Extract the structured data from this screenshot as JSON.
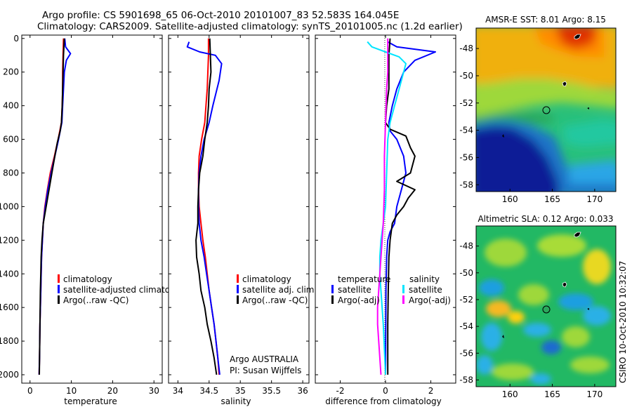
{
  "header": {
    "title_line1": "Argo profile: CS 5901698_65 06-Oct-2010 20101007_83 52.583S 164.045E",
    "title_line2": "Climatology: CARS2009. Satellite-adjusted climatology: synTS_20101005.nc (1.2d earlier)"
  },
  "credit": "CSIRO 10-Oct-2010 10:32:07",
  "colors": {
    "climatology": "#ff0000",
    "satellite": "#0000ff",
    "argo": "#000000",
    "cyan": "#00e5ff",
    "magenta": "#ff00ff"
  },
  "chart_data": [
    {
      "id": "temperature",
      "type": "line",
      "xlabel": "temperature",
      "ylim": [
        2050,
        -20
      ],
      "yticks": [
        0,
        200,
        400,
        600,
        800,
        1000,
        1200,
        1400,
        1600,
        1800,
        2000
      ],
      "xlim": [
        -2,
        32
      ],
      "xticks": [
        0,
        10,
        20,
        30
      ],
      "legend": [
        {
          "label": "climatology",
          "color": "#ff0000"
        },
        {
          "label": "satellite-adjusted climatology",
          "color": "#0000ff"
        },
        {
          "label": "Argo(..raw -QC)",
          "color": "#000000"
        }
      ],
      "series": [
        {
          "name": "climatology",
          "color": "#ff0000",
          "points": [
            [
              8.1,
              0
            ],
            [
              8.0,
              100
            ],
            [
              7.9,
              200
            ],
            [
              7.9,
              300
            ],
            [
              7.8,
              400
            ],
            [
              7.6,
              500
            ],
            [
              6.8,
              600
            ],
            [
              5.9,
              700
            ],
            [
              4.9,
              800
            ],
            [
              4.2,
              900
            ],
            [
              3.6,
              1000
            ],
            [
              3.2,
              1100
            ],
            [
              3.0,
              1200
            ],
            [
              2.8,
              1300
            ],
            [
              2.7,
              1400
            ],
            [
              2.6,
              1500
            ],
            [
              2.5,
              1600
            ],
            [
              2.4,
              1700
            ],
            [
              2.35,
              1800
            ],
            [
              2.3,
              1900
            ],
            [
              2.2,
              2000
            ]
          ]
        },
        {
          "name": "satellite-adjusted climatology",
          "color": "#0000ff",
          "points": [
            [
              8.4,
              0
            ],
            [
              8.6,
              50
            ],
            [
              9.8,
              90
            ],
            [
              8.8,
              130
            ],
            [
              8.3,
              200
            ],
            [
              8.1,
              300
            ],
            [
              7.9,
              400
            ],
            [
              7.7,
              500
            ],
            [
              6.9,
              600
            ],
            [
              6.0,
              700
            ],
            [
              5.1,
              800
            ],
            [
              4.3,
              900
            ],
            [
              3.7,
              1000
            ],
            [
              3.2,
              1100
            ],
            [
              3.0,
              1200
            ],
            [
              2.8,
              1300
            ],
            [
              2.7,
              1400
            ],
            [
              2.6,
              1500
            ],
            [
              2.5,
              1600
            ],
            [
              2.4,
              1700
            ],
            [
              2.35,
              1800
            ],
            [
              2.3,
              1900
            ],
            [
              2.2,
              2000
            ]
          ]
        },
        {
          "name": "Argo(..raw -QC)",
          "color": "#000000",
          "points": [
            [
              8.3,
              0
            ],
            [
              8.2,
              50
            ],
            [
              8.1,
              100
            ],
            [
              8.0,
              200
            ],
            [
              7.9,
              300
            ],
            [
              7.8,
              400
            ],
            [
              7.6,
              500
            ],
            [
              7.3,
              550
            ],
            [
              6.6,
              620
            ],
            [
              6.0,
              700
            ],
            [
              5.3,
              800
            ],
            [
              4.6,
              900
            ],
            [
              3.9,
              1000
            ],
            [
              3.2,
              1100
            ],
            [
              2.9,
              1200
            ],
            [
              2.7,
              1300
            ],
            [
              2.6,
              1400
            ],
            [
              2.5,
              1500
            ],
            [
              2.45,
              1600
            ],
            [
              2.4,
              1700
            ],
            [
              2.35,
              1800
            ],
            [
              2.3,
              1900
            ],
            [
              2.25,
              2000
            ]
          ]
        }
      ]
    },
    {
      "id": "salinity",
      "type": "line",
      "xlabel": "salinity",
      "ylim": [
        2050,
        -20
      ],
      "xlim": [
        33.85,
        36.1
      ],
      "xticks": [
        34,
        34.5,
        35,
        35.5,
        36
      ],
      "legend": [
        {
          "label": "climatology",
          "color": "#ff0000"
        },
        {
          "label": "satellite adj. clim.",
          "color": "#0000ff"
        },
        {
          "label": "Argo(..raw -QC)",
          "color": "#000000"
        }
      ],
      "annotation": [
        "Argo AUSTRALIA",
        "PI: Susan Wijffels"
      ],
      "series": [
        {
          "name": "climatology",
          "color": "#ff0000",
          "points": [
            [
              34.49,
              0
            ],
            [
              34.49,
              100
            ],
            [
              34.48,
              200
            ],
            [
              34.47,
              300
            ],
            [
              34.45,
              400
            ],
            [
              34.43,
              500
            ],
            [
              34.38,
              600
            ],
            [
              34.34,
              700
            ],
            [
              34.33,
              800
            ],
            [
              34.33,
              900
            ],
            [
              34.34,
              1000
            ],
            [
              34.37,
              1100
            ],
            [
              34.4,
              1200
            ],
            [
              34.44,
              1300
            ],
            [
              34.47,
              1400
            ],
            [
              34.5,
              1500
            ],
            [
              34.54,
              1600
            ],
            [
              34.58,
              1700
            ],
            [
              34.61,
              1800
            ],
            [
              34.64,
              1900
            ],
            [
              34.66,
              2000
            ]
          ]
        },
        {
          "name": "satellite adj. clim.",
          "color": "#0000ff",
          "points": [
            [
              34.18,
              20
            ],
            [
              34.15,
              50
            ],
            [
              34.35,
              80
            ],
            [
              34.6,
              100
            ],
            [
              34.7,
              150
            ],
            [
              34.66,
              250
            ],
            [
              34.56,
              400
            ],
            [
              34.5,
              500
            ],
            [
              34.42,
              600
            ],
            [
              34.37,
              700
            ],
            [
              34.34,
              800
            ],
            [
              34.33,
              900
            ],
            [
              34.33,
              1000
            ],
            [
              34.34,
              1100
            ],
            [
              34.37,
              1200
            ],
            [
              34.42,
              1300
            ],
            [
              34.46,
              1400
            ],
            [
              34.5,
              1500
            ],
            [
              34.54,
              1600
            ],
            [
              34.58,
              1700
            ],
            [
              34.61,
              1800
            ],
            [
              34.64,
              1900
            ],
            [
              34.67,
              2000
            ]
          ]
        },
        {
          "name": "Argo(..raw -QC)",
          "color": "#000000",
          "points": [
            [
              34.51,
              0
            ],
            [
              34.52,
              100
            ],
            [
              34.53,
              200
            ],
            [
              34.5,
              300
            ],
            [
              34.49,
              400
            ],
            [
              34.47,
              500
            ],
            [
              34.43,
              600
            ],
            [
              34.4,
              700
            ],
            [
              34.35,
              800
            ],
            [
              34.33,
              900
            ],
            [
              34.32,
              1000
            ],
            [
              34.32,
              1100
            ],
            [
              34.29,
              1200
            ],
            [
              34.3,
              1300
            ],
            [
              34.34,
              1400
            ],
            [
              34.37,
              1500
            ],
            [
              34.43,
              1600
            ],
            [
              34.47,
              1700
            ],
            [
              34.53,
              1800
            ],
            [
              34.58,
              1900
            ],
            [
              34.62,
              2000
            ]
          ]
        }
      ]
    },
    {
      "id": "difference",
      "type": "line",
      "xlabel": "difference from climatology",
      "ylim": [
        2050,
        -20
      ],
      "xlim": [
        -3.1,
        3.1
      ],
      "xticks": [
        -2,
        0,
        2
      ],
      "legend_left_heading": "temperature",
      "legend_right_heading": "salinity",
      "legend": [
        {
          "label": "satellite",
          "color": "#0000ff"
        },
        {
          "label": "Argo(-adj)",
          "color": "#000000"
        },
        {
          "label": "satellite",
          "color": "#00e5ff"
        },
        {
          "label": "Argo(-adj)",
          "color": "#ff00ff"
        }
      ],
      "series": [
        {
          "name": "temperature satellite",
          "color": "#0000ff",
          "points": [
            [
              0.1,
              20
            ],
            [
              0.5,
              50
            ],
            [
              2.2,
              80
            ],
            [
              1.3,
              130
            ],
            [
              0.8,
              200
            ],
            [
              0.5,
              300
            ],
            [
              0.3,
              400
            ],
            [
              0.15,
              500
            ],
            [
              0.2,
              550
            ],
            [
              0.5,
              600
            ],
            [
              0.8,
              700
            ],
            [
              0.9,
              800
            ],
            [
              0.7,
              900
            ],
            [
              0.5,
              1000
            ],
            [
              0.4,
              1100
            ],
            [
              0.2,
              1150
            ],
            [
              0.1,
              1200
            ],
            [
              0.05,
              1300
            ],
            [
              0.02,
              1500
            ],
            [
              0.0,
              2000
            ]
          ]
        },
        {
          "name": "temperature Argo(-adj)",
          "color": "#000000",
          "points": [
            [
              0.2,
              0
            ],
            [
              0.15,
              100
            ],
            [
              0.15,
              300
            ],
            [
              0.05,
              400
            ],
            [
              0.0,
              500
            ],
            [
              0.2,
              540
            ],
            [
              0.9,
              580
            ],
            [
              1.1,
              650
            ],
            [
              1.3,
              700
            ],
            [
              1.1,
              800
            ],
            [
              0.5,
              850
            ],
            [
              1.3,
              900
            ],
            [
              1.0,
              950
            ],
            [
              0.8,
              1000
            ],
            [
              0.5,
              1050
            ],
            [
              0.3,
              1100
            ],
            [
              0.2,
              1200
            ],
            [
              0.15,
              1300
            ],
            [
              0.12,
              1500
            ],
            [
              0.1,
              1700
            ],
            [
              0.1,
              2000
            ]
          ]
        },
        {
          "name": "salinity satellite",
          "color": "#00e5ff",
          "points": [
            [
              -0.8,
              20
            ],
            [
              -0.6,
              50
            ],
            [
              0.0,
              80
            ],
            [
              0.6,
              110
            ],
            [
              0.9,
              150
            ],
            [
              0.8,
              200
            ],
            [
              0.6,
              300
            ],
            [
              0.4,
              400
            ],
            [
              0.2,
              500
            ],
            [
              0.1,
              600
            ],
            [
              0.05,
              800
            ],
            [
              0.0,
              1000
            ],
            [
              -0.1,
              1100
            ],
            [
              -0.2,
              1200
            ],
            [
              -0.25,
              1300
            ],
            [
              -0.25,
              1400
            ],
            [
              -0.2,
              1500
            ],
            [
              -0.1,
              1700
            ],
            [
              0.0,
              2000
            ]
          ]
        },
        {
          "name": "salinity Argo(-adj)",
          "color": "#ff00ff",
          "points": [
            [
              0.1,
              0
            ],
            [
              0.1,
              100
            ],
            [
              0.1,
              200
            ],
            [
              0.05,
              300
            ],
            [
              0.0,
              500
            ],
            [
              -0.05,
              700
            ],
            [
              -0.05,
              900
            ],
            [
              -0.1,
              1100
            ],
            [
              -0.15,
              1200
            ],
            [
              -0.2,
              1300
            ],
            [
              -0.25,
              1400
            ],
            [
              -0.3,
              1500
            ],
            [
              -0.35,
              1600
            ],
            [
              -0.35,
              1700
            ],
            [
              -0.3,
              1800
            ],
            [
              -0.25,
              1900
            ],
            [
              -0.2,
              2000
            ]
          ]
        }
      ]
    },
    {
      "id": "map-sst",
      "type": "heatmap",
      "title": "AMSR-E SST: 8.01 Argo: 8.15",
      "xlim": [
        156,
        172.5
      ],
      "ylim": [
        -58.5,
        -46.5
      ],
      "xticks": [
        160,
        165,
        170
      ],
      "yticks": [
        -48,
        -50,
        -52,
        -54,
        -56,
        -58
      ],
      "marker": {
        "lon": 164.045,
        "lat": -52.583
      }
    },
    {
      "id": "map-sla",
      "type": "heatmap",
      "title": "Altimetric SLA: 0.12 Argo: 0.033",
      "xlim": [
        156,
        172.5
      ],
      "ylim": [
        -58.5,
        -46.5
      ],
      "xticks": [
        160,
        165,
        170
      ],
      "yticks": [
        -48,
        -50,
        -52,
        -54,
        -56,
        -58
      ],
      "marker": {
        "lon": 164.045,
        "lat": -52.583
      }
    }
  ]
}
